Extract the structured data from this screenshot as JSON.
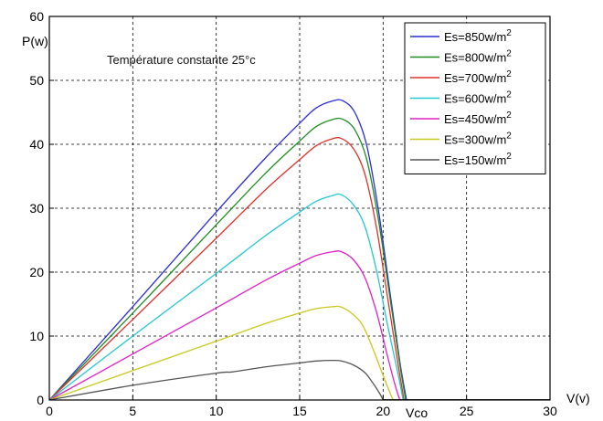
{
  "chart_data": {
    "type": "line",
    "xlabel": "V(v)",
    "ylabel": "P(w)",
    "xlim": [
      0,
      30
    ],
    "ylim": [
      0,
      60
    ],
    "xticks": [
      0,
      5,
      10,
      15,
      20,
      25,
      30
    ],
    "yticks": [
      0,
      10,
      20,
      30,
      40,
      50,
      60
    ],
    "grid": true,
    "legend_position": "top-right",
    "annotations": [
      {
        "text": "Température constante 25°c",
        "x": 4.5,
        "y": 53
      },
      {
        "text": "Vco",
        "x": 21.3,
        "y": -2
      }
    ],
    "series": [
      {
        "label": "Es=850w/m",
        "sup": "2",
        "color": "#2b2bd9",
        "points": [
          [
            0,
            0
          ],
          [
            5,
            14.6
          ],
          [
            10,
            29.4
          ],
          [
            13,
            38
          ],
          [
            15,
            43.3
          ],
          [
            16,
            45.7
          ],
          [
            17,
            46.8
          ],
          [
            17.6,
            46.8
          ],
          [
            18.3,
            45
          ],
          [
            19,
            40
          ],
          [
            19.7,
            30
          ],
          [
            20.4,
            17
          ],
          [
            21,
            6
          ],
          [
            21.4,
            0
          ]
        ]
      },
      {
        "label": "Es=800w/m",
        "sup": "2",
        "color": "#1f8c1f",
        "points": [
          [
            0,
            0
          ],
          [
            5,
            13.6
          ],
          [
            10,
            27.4
          ],
          [
            13,
            35.6
          ],
          [
            15,
            40.5
          ],
          [
            16,
            42.8
          ],
          [
            17,
            43.9
          ],
          [
            17.6,
            43.9
          ],
          [
            18.3,
            42.3
          ],
          [
            19,
            37.8
          ],
          [
            19.7,
            28.5
          ],
          [
            20.4,
            16.2
          ],
          [
            21,
            5.6
          ],
          [
            21.35,
            0
          ]
        ]
      },
      {
        "label": "Es=700w/m",
        "sup": "2",
        "color": "#e0302a",
        "points": [
          [
            0,
            0
          ],
          [
            5,
            12.6
          ],
          [
            10,
            25.3
          ],
          [
            13,
            33
          ],
          [
            15,
            37.6
          ],
          [
            16,
            39.8
          ],
          [
            17,
            40.9
          ],
          [
            17.5,
            40.9
          ],
          [
            18.2,
            39.4
          ],
          [
            18.9,
            35.4
          ],
          [
            19.6,
            27
          ],
          [
            20.3,
            15.5
          ],
          [
            20.9,
            5.5
          ],
          [
            21.25,
            0
          ]
        ]
      },
      {
        "label": "Es=600w/m",
        "sup": "2",
        "color": "#20c8d0",
        "points": [
          [
            0,
            0
          ],
          [
            5,
            10
          ],
          [
            10,
            19.8
          ],
          [
            13,
            25.8
          ],
          [
            15,
            29.4
          ],
          [
            16,
            31.1
          ],
          [
            17,
            32
          ],
          [
            17.5,
            32.1
          ],
          [
            18.2,
            30.6
          ],
          [
            18.9,
            27.2
          ],
          [
            19.6,
            20.3
          ],
          [
            20.3,
            11.3
          ],
          [
            20.9,
            4
          ],
          [
            21.2,
            0
          ]
        ]
      },
      {
        "label": "Es=450w/m",
        "sup": "2",
        "color": "#e020c8",
        "points": [
          [
            0,
            0
          ],
          [
            5,
            7.2
          ],
          [
            10,
            14.4
          ],
          [
            13,
            18.8
          ],
          [
            15,
            21.4
          ],
          [
            16,
            22.6
          ],
          [
            17,
            23.2
          ],
          [
            17.5,
            23.2
          ],
          [
            18.2,
            22
          ],
          [
            18.9,
            19.2
          ],
          [
            19.6,
            13.8
          ],
          [
            20.2,
            7.5
          ],
          [
            20.7,
            2.5
          ],
          [
            21,
            0
          ]
        ]
      },
      {
        "label": "Es=300w/m",
        "sup": "2",
        "color": "#c8c81e",
        "points": [
          [
            0,
            0
          ],
          [
            5,
            4.6
          ],
          [
            10,
            9.2
          ],
          [
            13,
            12
          ],
          [
            15,
            13.6
          ],
          [
            16,
            14.3
          ],
          [
            17,
            14.6
          ],
          [
            17.4,
            14.6
          ],
          [
            18,
            13.8
          ],
          [
            18.7,
            12
          ],
          [
            19.3,
            8.6
          ],
          [
            19.9,
            4.5
          ],
          [
            20.4,
            1.2
          ],
          [
            20.6,
            0
          ]
        ]
      },
      {
        "label": "Es=150w/m",
        "sup": "2",
        "color": "#555555",
        "points": [
          [
            0,
            0
          ],
          [
            5,
            2.3
          ],
          [
            10,
            4.2
          ],
          [
            11,
            4.4
          ],
          [
            13,
            5.2
          ],
          [
            15,
            5.8
          ],
          [
            16,
            6.1
          ],
          [
            17,
            6.2
          ],
          [
            17.5,
            6.1
          ],
          [
            18.2,
            5.5
          ],
          [
            18.9,
            4.3
          ],
          [
            19.4,
            2.6
          ],
          [
            19.8,
            1
          ],
          [
            20,
            0
          ]
        ]
      }
    ]
  }
}
